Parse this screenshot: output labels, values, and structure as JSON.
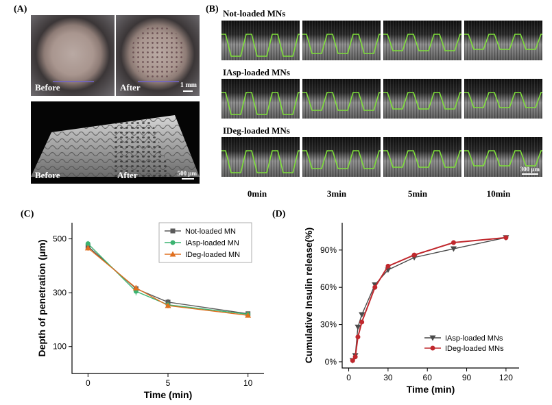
{
  "panel_a": {
    "label": "(A)",
    "photo_before": "Before",
    "photo_after": "After",
    "scale_top": "1 mm",
    "render_before": "Before",
    "render_after": "After",
    "scale_bottom": "500 μm"
  },
  "panel_b": {
    "label": "(B)",
    "rows": [
      "Not-loaded MNs",
      "IAsp-loaded MNs",
      "IDeg-loaded MNs"
    ],
    "times": [
      "0min",
      "3min",
      "5min",
      "10min"
    ],
    "scale": "300 μm"
  },
  "chart_data": [
    {
      "panel": "(C)",
      "type": "line",
      "title": "",
      "xlabel": "Time (min)",
      "ylabel": "Depth of penetration (μm)",
      "xlim": [
        -1,
        11
      ],
      "ylim": [
        0,
        560
      ],
      "xticks": [
        "0",
        "5",
        "10"
      ],
      "yticks": [
        "100",
        "300",
        "500"
      ],
      "x": [
        0,
        3,
        5,
        10
      ],
      "series": [
        {
          "name": "Not-loaded MN",
          "color": "#5a5a5a",
          "marker": "square",
          "values": [
            472,
            315,
            265,
            222
          ],
          "errors": [
            10,
            10,
            12,
            8
          ]
        },
        {
          "name": "IAsp-loaded MN",
          "color": "#3cb371",
          "marker": "circle",
          "values": [
            482,
            305,
            255,
            220
          ],
          "errors": [
            10,
            15,
            10,
            8
          ]
        },
        {
          "name": "IDeg-loaded MN",
          "color": "#e07020",
          "marker": "triangle",
          "values": [
            466,
            318,
            252,
            216
          ],
          "errors": [
            10,
            10,
            10,
            8
          ]
        }
      ],
      "legend": "top-right"
    },
    {
      "panel": "(D)",
      "type": "line",
      "title": "",
      "xlabel": "Time (min)",
      "ylabel": "Cumulative Insulin release(%)",
      "xlim": [
        -5,
        130
      ],
      "ylim": [
        -5,
        112
      ],
      "xticks": [
        "0",
        "30",
        "60",
        "90",
        "120"
      ],
      "yticks": [
        "0%",
        "30%",
        "60%",
        "90%"
      ],
      "series": [
        {
          "name": "IAsp-loaded MNs",
          "color": "#4a4a4a",
          "marker": "triangle-down",
          "x": [
            3,
            5,
            7,
            10,
            20,
            30,
            50,
            80,
            120
          ],
          "values": [
            1,
            5,
            28,
            38,
            62,
            74,
            84,
            91,
            100
          ]
        },
        {
          "name": "IDeg-loaded MNs",
          "color": "#c0282d",
          "marker": "circle",
          "x": [
            3,
            5,
            7,
            10,
            20,
            30,
            50,
            80,
            120
          ],
          "values": [
            1,
            4,
            20,
            32,
            60,
            77,
            86,
            96,
            100
          ]
        }
      ],
      "legend": "bottom-right"
    }
  ]
}
